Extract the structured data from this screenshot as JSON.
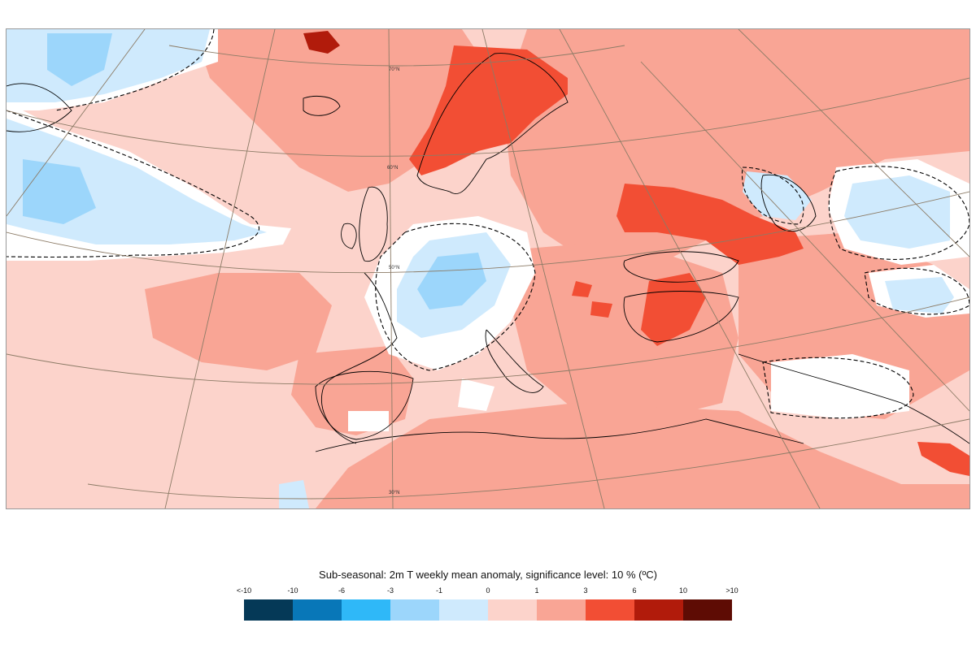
{
  "map": {
    "lat_labels": [
      "70°N",
      "60°N",
      "50°N",
      "30°N"
    ],
    "colors": {
      "background_anomaly": "#fcd3cb",
      "moderate_warm": "#f9a595",
      "strong_warm": "#f24e34",
      "very_strong_warm": "#b11b0b",
      "extreme_warm": "#5e0c04",
      "no_signal": "#ffffff",
      "slight_cold": "#cfeafd",
      "moderate_cold": "#9cd6fb",
      "coastline": "#000000",
      "graticule": "#8c7b66"
    }
  },
  "legend": {
    "title": "Sub-seasonal: 2m T weekly mean anomaly, significance level: 10 % (ºC)",
    "tick_labels": [
      "<-10",
      "-10",
      "-6",
      "-3",
      "-1",
      "0",
      "1",
      "3",
      "6",
      "10",
      ">10"
    ],
    "swatch_colors": [
      "#053957",
      "#0877b8",
      "#2fb8f8",
      "#9cd6fb",
      "#cfeafd",
      "#fcd3cb",
      "#f9a595",
      "#f24e34",
      "#b11b0b",
      "#5e0c04"
    ]
  }
}
